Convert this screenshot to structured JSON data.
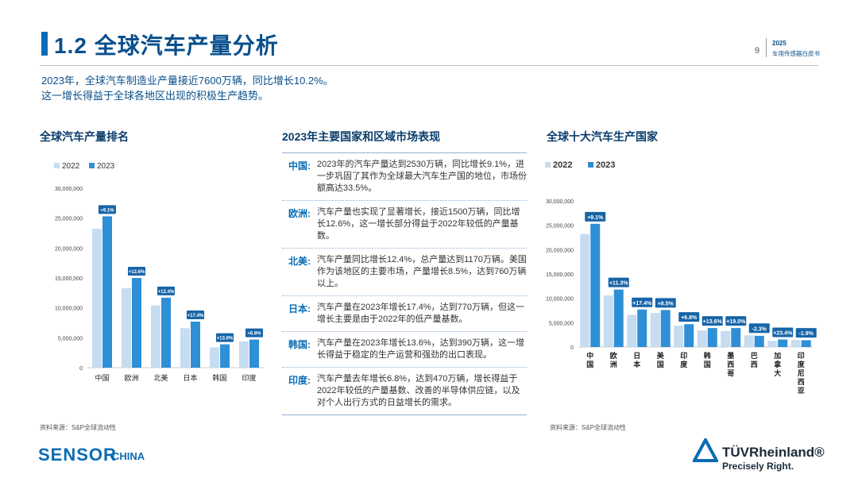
{
  "header": {
    "title": "1.2 全球汽车产量分析",
    "page_number": "9",
    "report_year": "2025",
    "report_name": "车用传感器白皮书"
  },
  "intro": {
    "line1": "2023年，全球汽车制造业产量接近7600万辆，同比增长10.2%。",
    "line2": "这一增长得益于全球各地区出现的积极生产趋势。"
  },
  "left_section": {
    "title": "全球汽车产量排名",
    "source": "资料来源：S&P全球流动性"
  },
  "mid_section": {
    "title": "2023年主要国家和区域市场表现",
    "rows": [
      {
        "label": "中国:",
        "text": "2023年的汽车产量达到2530万辆，同比增长9.1%，进一步巩固了其作为全球最大汽车生产国的地位，市场份额高达33.5%。"
      },
      {
        "label": "欧洲:",
        "text": "汽车产量也实现了显著增长，接近1500万辆，同比增长12.6%，这一增长部分得益于2022年较低的产量基数。"
      },
      {
        "label": "北美:",
        "text": "汽车产量同比增长12.4%，总产量达到1170万辆。美国作为该地区的主要市场，产量增长8.5%，达到760万辆以上。"
      },
      {
        "label": "日本:",
        "text": "汽车产量在2023年增长17.4%，达到770万辆，但这一增长主要是由于2022年的低产量基数。"
      },
      {
        "label": "韩国:",
        "text": "汽车产量在2023年增长13.6%，达到390万辆，这一增长得益于稳定的生产运营和强劲的出口表现。"
      },
      {
        "label": "印度:",
        "text": "汽车产量去年增长6.8%，达到470万辆，增长得益于2022年较低的产量基数、改善的半导体供应链，以及对个人出行方式的日益增长的需求。"
      }
    ]
  },
  "right_section": {
    "title": "全球十大汽车生产国家",
    "source": "资料来源：S&P全球流动性"
  },
  "logos": {
    "sensor": "SENSOR",
    "sensor_china": "CHINA",
    "tuv_name": "TÜVRheinland®",
    "tuv_slogan": "Precisely Right."
  },
  "colors": {
    "series_2022": "#c6dcf0",
    "series_2023": "#2f8fd6",
    "label_bg": "#1765a8",
    "accent": "#0a6cb4"
  },
  "chart_data": [
    {
      "type": "bar",
      "categories": [
        "中国",
        "欧洲",
        "北美",
        "日本",
        "韩国",
        "印度"
      ],
      "series": [
        {
          "name": "2022",
          "values": [
            23200000,
            13300000,
            10400000,
            6600000,
            3400000,
            4400000
          ]
        },
        {
          "name": "2023",
          "values": [
            25300000,
            15000000,
            11700000,
            7700000,
            3900000,
            4700000
          ]
        }
      ],
      "growth_labels": [
        "+9.1%",
        "+12.6%",
        "+12.4%",
        "+17.4%",
        "+13.6%",
        "+6.8%"
      ],
      "yticks": [
        "0",
        "5,000,000",
        "10,000,000",
        "15,000,000",
        "20,000,000",
        "25,000,000",
        "30,000,000"
      ],
      "ylim": [
        0,
        30000000
      ],
      "legend": "top-left",
      "grid": false
    },
    {
      "type": "bar",
      "categories": [
        "中国",
        "欧洲",
        "日本",
        "美国",
        "印度",
        "韩国",
        "墨西哥",
        "巴西",
        "加拿大",
        "印度尼西亚"
      ],
      "series": [
        {
          "name": "2022",
          "values": [
            23200000,
            10600000,
            6600000,
            7000000,
            4400000,
            3400000,
            3300000,
            2400000,
            1250000,
            1450000
          ]
        },
        {
          "name": "2023",
          "values": [
            25300000,
            11800000,
            7700000,
            7600000,
            4700000,
            3900000,
            3900000,
            2300000,
            1550000,
            1400000
          ]
        }
      ],
      "growth_labels": [
        "+9.1%",
        "+11.3%",
        "+17.4%",
        "+8.5%",
        "+6.8%",
        "+13.6%",
        "+19.0%",
        "-2.3%",
        "+23.4%",
        "-1.9%"
      ],
      "yticks": [
        "0",
        "5,000,000",
        "10,000,000",
        "15,000,000",
        "20,000,000",
        "25,000,000",
        "30,000,000"
      ],
      "ylim": [
        0,
        30000000
      ],
      "legend": "top-left",
      "grid": false
    }
  ]
}
